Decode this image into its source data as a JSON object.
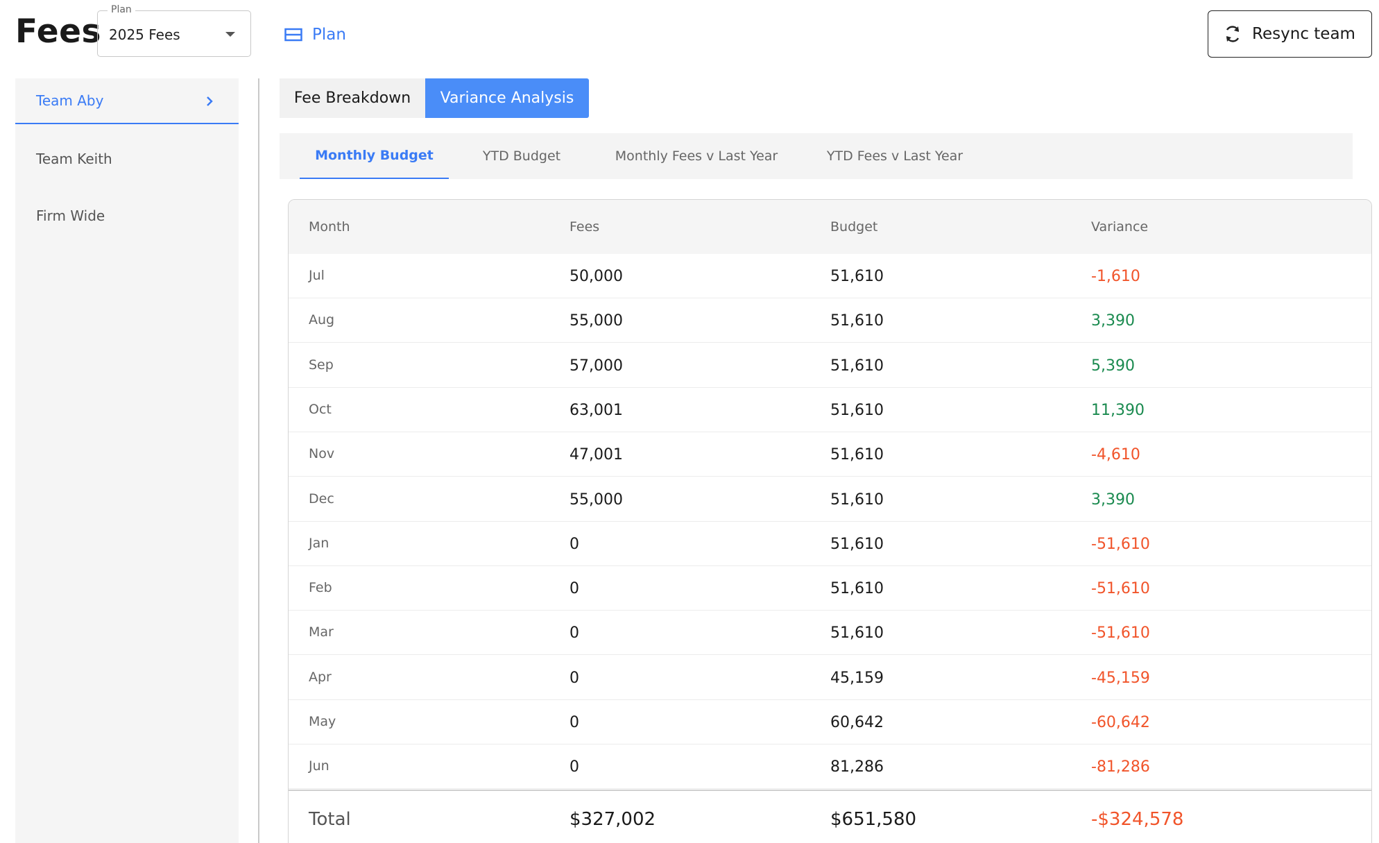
{
  "header": {
    "title": "Fees",
    "plan_select": {
      "label": "Plan",
      "value": "2025 Fees"
    },
    "plan_link": "Plan",
    "resync_label": "Resync team"
  },
  "sidebar": {
    "items": [
      {
        "label": "Team Aby",
        "active": true
      },
      {
        "label": "Team Keith",
        "active": false
      },
      {
        "label": "Firm Wide",
        "active": false
      }
    ]
  },
  "view_toggle": {
    "fee_breakdown": "Fee Breakdown",
    "variance_analysis": "Variance Analysis",
    "selected": "Variance Analysis"
  },
  "subtabs": {
    "items": [
      "Monthly Budget",
      "YTD Budget",
      "Monthly Fees v Last Year",
      "YTD Fees v Last Year"
    ],
    "selected": "Monthly Budget"
  },
  "table": {
    "columns": [
      "Month",
      "Fees",
      "Budget",
      "Variance"
    ],
    "rows": [
      {
        "month": "Jul",
        "fees": "50,000",
        "budget": "51,610",
        "variance": "-1,610",
        "sign": "neg"
      },
      {
        "month": "Aug",
        "fees": "55,000",
        "budget": "51,610",
        "variance": "3,390",
        "sign": "pos"
      },
      {
        "month": "Sep",
        "fees": "57,000",
        "budget": "51,610",
        "variance": "5,390",
        "sign": "pos"
      },
      {
        "month": "Oct",
        "fees": "63,001",
        "budget": "51,610",
        "variance": "11,390",
        "sign": "pos"
      },
      {
        "month": "Nov",
        "fees": "47,001",
        "budget": "51,610",
        "variance": "-4,610",
        "sign": "neg"
      },
      {
        "month": "Dec",
        "fees": "55,000",
        "budget": "51,610",
        "variance": "3,390",
        "sign": "pos"
      },
      {
        "month": "Jan",
        "fees": "0",
        "budget": "51,610",
        "variance": "-51,610",
        "sign": "neg"
      },
      {
        "month": "Feb",
        "fees": "0",
        "budget": "51,610",
        "variance": "-51,610",
        "sign": "neg"
      },
      {
        "month": "Mar",
        "fees": "0",
        "budget": "51,610",
        "variance": "-51,610",
        "sign": "neg"
      },
      {
        "month": "Apr",
        "fees": "0",
        "budget": "45,159",
        "variance": "-45,159",
        "sign": "neg"
      },
      {
        "month": "May",
        "fees": "0",
        "budget": "60,642",
        "variance": "-60,642",
        "sign": "neg"
      },
      {
        "month": "Jun",
        "fees": "0",
        "budget": "81,286",
        "variance": "-81,286",
        "sign": "neg"
      }
    ],
    "total": {
      "label": "Total",
      "fees": "$327,002",
      "budget": "$651,580",
      "variance": "-$324,578",
      "sign": "neg"
    }
  },
  "colors": {
    "accent": "#3a7bf5",
    "positive": "#1a8a4f",
    "negative": "#f1542a"
  }
}
